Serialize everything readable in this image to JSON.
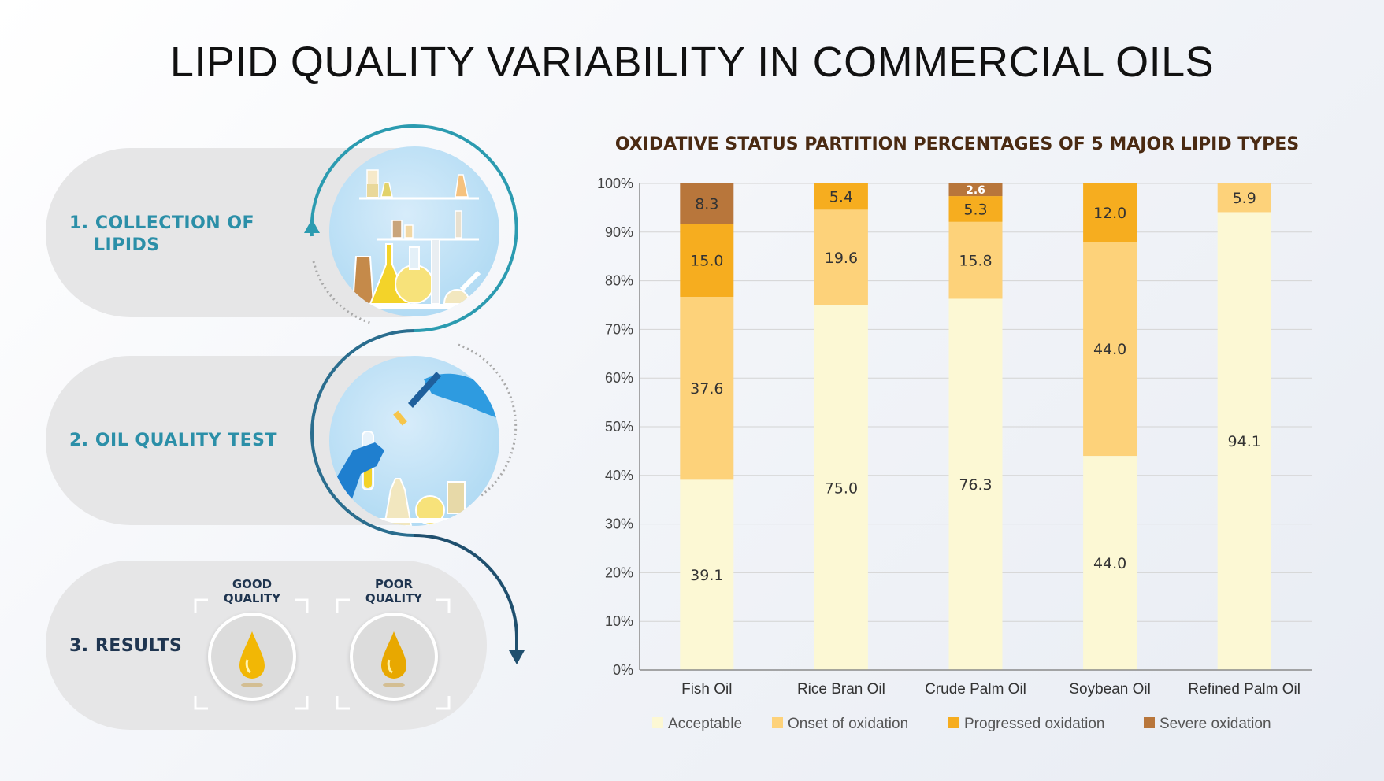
{
  "title": "LIPID QUALITY VARIABILITY IN COMMERCIAL OILS",
  "steps": [
    {
      "label_line1": "1. COLLECTION OF",
      "label_line2": "LIPIDS",
      "color": "#2b8fa8"
    },
    {
      "label": "2. OIL QUALITY TEST",
      "color": "#2b8fa8"
    },
    {
      "label": "3. RESULTS",
      "color": "#1f3550"
    }
  ],
  "results": {
    "good_line1": "GOOD",
    "good_line2": "QUALITY",
    "poor_line1": "POOR",
    "poor_line2": "QUALITY"
  },
  "colors": {
    "teal": "#2b8fa8",
    "navy": "#1f4f6e",
    "acceptable": "#fcf8d4",
    "onset": "#fdd27a",
    "progressed": "#f6ad1f",
    "severe": "#b8763b"
  },
  "chart_data": {
    "type": "bar",
    "stacked": true,
    "title": "OXIDATIVE STATUS PARTITION PERCENTAGES OF 5 MAJOR LIPID TYPES",
    "categories": [
      "Fish Oil",
      "Rice Bran Oil",
      "Crude Palm Oil",
      "Soybean Oil",
      "Refined Palm Oil"
    ],
    "series": [
      {
        "name": "Acceptable",
        "values": [
          39.1,
          75.0,
          76.3,
          44.0,
          94.1
        ],
        "labels": [
          "39.1",
          "75.0",
          "76.3",
          "44.0",
          "94.1"
        ],
        "color": "#fcf8d4"
      },
      {
        "name": "Onset of oxidation",
        "values": [
          37.6,
          19.6,
          15.8,
          44.0,
          5.9
        ],
        "labels": [
          "37.6",
          "19.6",
          "15.8",
          "44.0",
          "5.9"
        ],
        "color": "#fdd27a"
      },
      {
        "name": "Progressed oxidation",
        "values": [
          15.0,
          5.4,
          5.3,
          12.0,
          0
        ],
        "labels": [
          "15.0",
          "5.4",
          "5.3",
          "12.0",
          ""
        ],
        "color": "#f6ad1f"
      },
      {
        "name": "Severe oxidation",
        "values": [
          8.3,
          0,
          2.6,
          0,
          0
        ],
        "labels": [
          "8.3",
          "",
          "2.6",
          "",
          ""
        ],
        "color": "#b8763b"
      }
    ],
    "yticks": [
      "0%",
      "10%",
      "20%",
      "30%",
      "40%",
      "50%",
      "60%",
      "70%",
      "80%",
      "90%",
      "100%"
    ],
    "ylim": [
      0,
      100
    ],
    "grid": true,
    "legend": "bottom"
  }
}
